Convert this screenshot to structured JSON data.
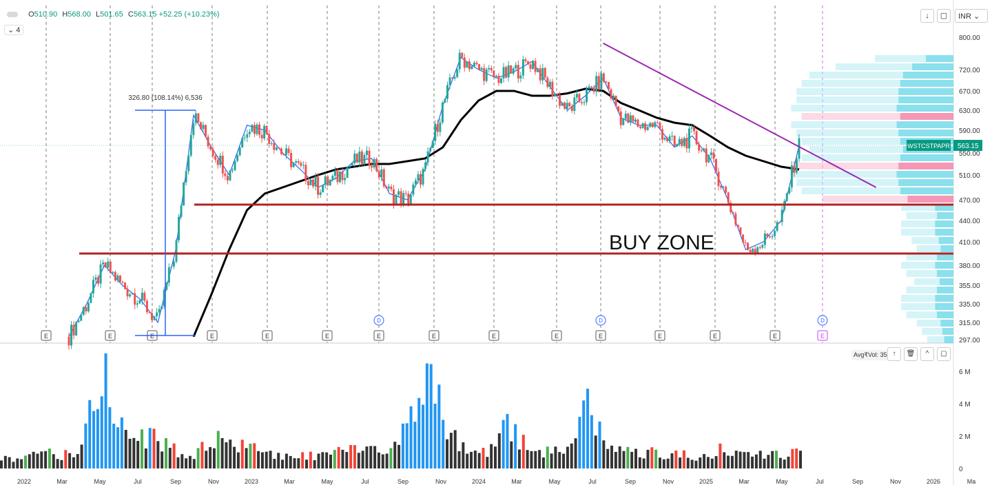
{
  "ohlc": {
    "o": "O",
    "o_val": "510.90",
    "h": "H",
    "h_val": "568.00",
    "l": "L",
    "l_val": "501.65",
    "c": "C",
    "c_val": "563.15",
    "chg": "+52.25 (+10.23%)"
  },
  "indicator_count": "4",
  "currency": "INR",
  "price_ticks": [
    "800.00",
    "720.00",
    "670.00",
    "630.00",
    "590.00",
    "550.00",
    "510.00",
    "470.00",
    "440.00",
    "410.00",
    "380.00",
    "355.00",
    "335.00",
    "315.00",
    "297.00"
  ],
  "volume_ticks": [
    "6 M",
    "4 M",
    "2 M",
    "0"
  ],
  "date_ticks": [
    "2022",
    "Mar",
    "May",
    "Jul",
    "Sep",
    "Nov",
    "2023",
    "Mar",
    "May",
    "Jul",
    "Sep",
    "Nov",
    "2024",
    "Mar",
    "May",
    "Jul",
    "Sep",
    "Nov",
    "2025",
    "Mar",
    "May",
    "Jul",
    "Sep",
    "Nov",
    "2026",
    "Ma"
  ],
  "last_price": {
    "symbol": "WSTCSTPAPR",
    "value": "563.15"
  },
  "measure_label": "326.80 (108.14%) 6,536",
  "buy_zone_label": "BUY ZONE",
  "avg_vol_label": "Avg₹Vol: 35.",
  "colors": {
    "up": "#26a69a",
    "down": "#ef5350",
    "hline": "#b22222",
    "trend": "#9c27b0",
    "ma": "#000000",
    "ema": "#2962ff",
    "vol_up": "#2196f3",
    "vol_green": "#4caf50",
    "vol_red": "#f44336",
    "vol_dark": "#333333"
  },
  "chart_data": {
    "type": "line",
    "title": "",
    "x": [
      "2022-01",
      "2022-02",
      "2022-03",
      "2022-04",
      "2022-05",
      "2022-06",
      "2022-07",
      "2022-08",
      "2022-09",
      "2022-10",
      "2022-11",
      "2022-12",
      "2023-01",
      "2023-02",
      "2023-03",
      "2023-04",
      "2023-05",
      "2023-06",
      "2023-07",
      "2023-08",
      "2023-09",
      "2023-10",
      "2023-11",
      "2023-12",
      "2024-01",
      "2024-02",
      "2024-03",
      "2024-04",
      "2024-05",
      "2024-06",
      "2024-07",
      "2024-08",
      "2024-09",
      "2024-10",
      "2024-11",
      "2024-12",
      "2025-01",
      "2025-02",
      "2025-03",
      "2025-04",
      "2025-05",
      "2025-06"
    ],
    "series": [
      {
        "name": "",
        "values": [
          300,
          335,
          380,
          355,
          340,
          315,
          400,
          620,
          560,
          510,
          600,
          590,
          550,
          520,
          490,
          505,
          535,
          540,
          480,
          470,
          520,
          640,
          750,
          720,
          700,
          715,
          740,
          680,
          630,
          660,
          700,
          615,
          600,
          600,
          560,
          580,
          540,
          470,
          400,
          410,
          440,
          563.15
        ]
      },
      {
        "name": "",
        "values": [
          null,
          null,
          null,
          null,
          null,
          null,
          null,
          300,
          345,
          400,
          455,
          480,
          490,
          500,
          510,
          520,
          525,
          530,
          530,
          535,
          540,
          560,
          610,
          650,
          670,
          670,
          660,
          660,
          665,
          675,
          670,
          645,
          630,
          615,
          605,
          600,
          580,
          560,
          545,
          535,
          525,
          520
        ]
      }
    ],
    "ylim": [
      297,
      800
    ],
    "horizontal_levels": [
      463,
      395
    ],
    "trendline": {
      "start": [
        "2024-07",
        785
      ],
      "end": [
        "2025-08",
        490
      ]
    },
    "volume_ylim": [
      0,
      6.8
    ],
    "volume": [
      0.9,
      0.5,
      1.4,
      0.8,
      1.2,
      6.9,
      3.5,
      2.2,
      2.1,
      1.1,
      1.0,
      2.1,
      1.5,
      1.3,
      1.0,
      0.8,
      0.9,
      1.0,
      1.2,
      1.3,
      1.1,
      3.8,
      6.6,
      2.7,
      1.0,
      1.1,
      3.2,
      1.3,
      1.2,
      1.4,
      4.6,
      1.5,
      1.2,
      1.1,
      1.0,
      0.9,
      0.8,
      1.3,
      1.2,
      1.0,
      1.0,
      1.0
    ]
  }
}
